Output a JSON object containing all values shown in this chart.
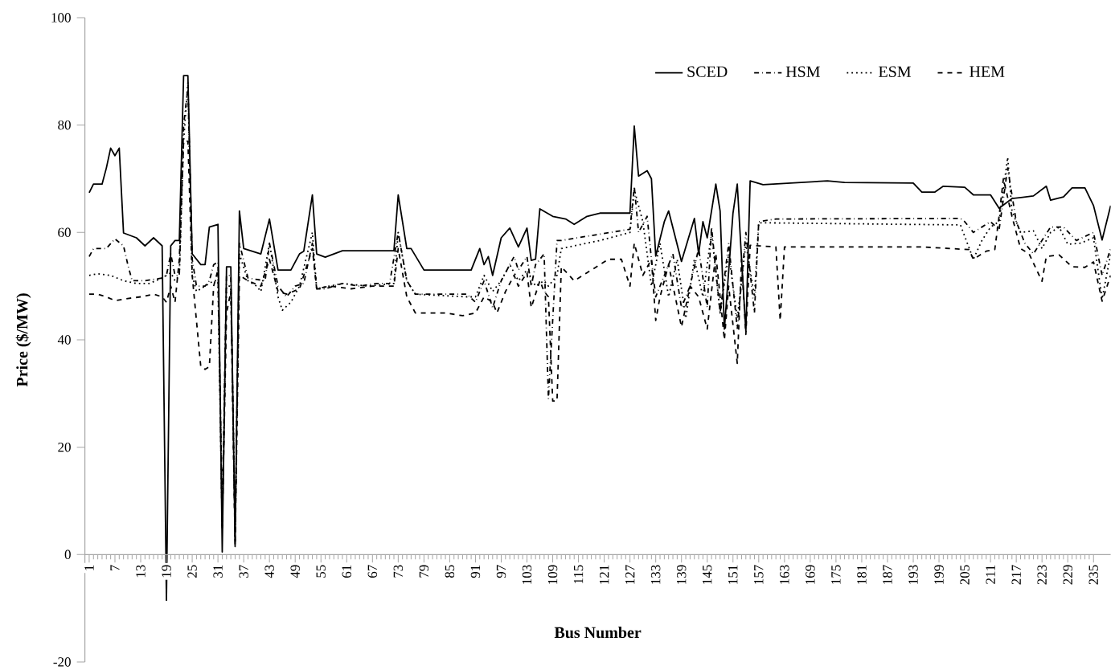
{
  "chart_data": {
    "type": "line",
    "xlabel": "Bus Number",
    "ylabel": "Price ($/MW)",
    "xlim": [
      0,
      239
    ],
    "ylim": [
      -20,
      100
    ],
    "xticks": [
      1,
      7,
      13,
      19,
      25,
      31,
      37,
      43,
      49,
      55,
      61,
      67,
      73,
      79,
      85,
      91,
      97,
      103,
      109,
      115,
      121,
      127,
      133,
      139,
      145,
      151,
      157,
      163,
      169,
      175,
      181,
      187,
      193,
      199,
      205,
      211,
      217,
      223,
      229,
      235
    ],
    "yticks": [
      -20,
      0,
      20,
      40,
      60,
      80,
      100
    ],
    "grid": false,
    "legend": "top right",
    "series": [
      {
        "name": "SCED",
        "color": "#000000",
        "line_style": "solid",
        "x": [
          1,
          2,
          4,
          5,
          6,
          7,
          8,
          9,
          12,
          14,
          16,
          18,
          19,
          20,
          21,
          22,
          23,
          24,
          25,
          27,
          28,
          29,
          31,
          32,
          33,
          34,
          35,
          36,
          37,
          41,
          43,
          45,
          48,
          50,
          51,
          53,
          54,
          56,
          60,
          65,
          70,
          72,
          73,
          75,
          76,
          79,
          85,
          90,
          92,
          93,
          94,
          95,
          97,
          99,
          101,
          103,
          104,
          105,
          106,
          109,
          112,
          114,
          117,
          120,
          127,
          128,
          129,
          131,
          132,
          133,
          135,
          136,
          139,
          142,
          143,
          144,
          145,
          147,
          148,
          149,
          151,
          152,
          153,
          154,
          155,
          158,
          173,
          177,
          193,
          195,
          198,
          200,
          205,
          207,
          211,
          213,
          216,
          221,
          224,
          225,
          228,
          230,
          233,
          235,
          237,
          239
        ],
        "values": [
          67.4,
          69,
          69,
          72,
          75.7,
          74.3,
          75.7,
          59.9,
          59,
          57.5,
          59,
          57.5,
          -8.5,
          57.5,
          58.5,
          58.5,
          89.2,
          89.2,
          56,
          54,
          54,
          61,
          61.5,
          0.5,
          53.6,
          53.6,
          2,
          64,
          57,
          56,
          62.5,
          53,
          53,
          56,
          56.5,
          67,
          56,
          55.4,
          56.6,
          56.6,
          56.6,
          56.6,
          67,
          57,
          57,
          53,
          53,
          53,
          57,
          54,
          55.5,
          52,
          59,
          60.8,
          57.3,
          60.8,
          54.8,
          55,
          64.4,
          63,
          62.5,
          61.5,
          63,
          63.6,
          63.6,
          79.8,
          70.5,
          71.5,
          70,
          55.6,
          62,
          64,
          54.6,
          62.6,
          56,
          62,
          59,
          69,
          64,
          42,
          63.6,
          69,
          55,
          41.6,
          69.6,
          68.9,
          69.6,
          69.3,
          69.2,
          67.5,
          67.5,
          68.6,
          68.4,
          67,
          67,
          64.5,
          66.3,
          66.8,
          68.6,
          66,
          66.6,
          68.3,
          68.3,
          65,
          58.6,
          65
        ]
      },
      {
        "name": "HSM",
        "color": "#000000",
        "line_style": "dashdot",
        "x": [
          1,
          2,
          5,
          7,
          9,
          10,
          11,
          14,
          18,
          19,
          20,
          21,
          22,
          23,
          24,
          25,
          26,
          28,
          29,
          30,
          31,
          32,
          33,
          34,
          35,
          36,
          38,
          42,
          43,
          45,
          47,
          49,
          51,
          53,
          54,
          56,
          60,
          64,
          68,
          71,
          73,
          75,
          77,
          89,
          91,
          93,
          95,
          97,
          100,
          101,
          103,
          104,
          105,
          107,
          108,
          110,
          111,
          127,
          128,
          129,
          131,
          132,
          133,
          135,
          137,
          139,
          141,
          143,
          145,
          146,
          148,
          150,
          152,
          154,
          156,
          157,
          161,
          204,
          205,
          207,
          209,
          211,
          213,
          215,
          217,
          219,
          221,
          223,
          225,
          228,
          231,
          235,
          237,
          239
        ],
        "values": [
          55.5,
          57,
          57,
          58.8,
          57.5,
          54,
          51,
          51,
          51.5,
          52,
          56,
          52,
          52,
          80,
          87,
          55,
          50,
          50,
          51,
          54,
          54.5,
          8,
          52,
          52,
          2.4,
          58,
          51.5,
          51,
          58,
          50,
          48,
          50,
          50.5,
          58,
          49.5,
          49.5,
          50.5,
          50,
          50.5,
          50.5,
          60,
          51,
          48.5,
          48.5,
          47,
          51,
          46,
          51,
          55.5,
          53,
          55.5,
          50,
          54,
          56,
          29,
          58.5,
          58.5,
          60.6,
          68.6,
          60,
          63,
          55,
          48,
          52,
          56,
          46,
          50,
          57,
          46,
          61,
          45,
          58,
          42,
          60,
          45,
          62,
          62.5,
          62.6,
          62,
          60,
          61,
          62,
          60.5,
          72,
          62,
          58,
          56,
          58.5,
          61,
          61,
          58.5,
          60,
          52,
          57
        ]
      },
      {
        "name": "ESM",
        "color": "#000000",
        "line_style": "dotted",
        "x": [
          1,
          3,
          6,
          9,
          12,
          15,
          18,
          19,
          20,
          21,
          22,
          23,
          24,
          25,
          26,
          28,
          30,
          31,
          32,
          33,
          34,
          35,
          36,
          38,
          40,
          41,
          43,
          45,
          46,
          48,
          50,
          53,
          54,
          60,
          66,
          72,
          73,
          75,
          77,
          89,
          91,
          93,
          95,
          97,
          99,
          101,
          103,
          105,
          107,
          108,
          110,
          111,
          120,
          127,
          128,
          130,
          132,
          134,
          136,
          138,
          140,
          142,
          144,
          146,
          148,
          150,
          152,
          154,
          156,
          157,
          204,
          207,
          209,
          211,
          213,
          215,
          216,
          218,
          221,
          223,
          225,
          227,
          229,
          232,
          235,
          237,
          239
        ],
        "values": [
          52,
          52.3,
          52,
          51,
          50.5,
          50.5,
          51.5,
          52,
          52.5,
          51,
          52,
          77,
          88,
          52,
          49,
          50,
          51,
          51,
          5,
          50,
          50,
          5,
          56,
          51,
          50,
          49,
          58,
          48,
          45.5,
          47,
          50,
          60,
          49.5,
          50.5,
          50,
          50.5,
          60,
          51,
          48.5,
          48,
          48,
          52,
          49,
          51,
          54,
          51,
          53,
          50,
          51,
          50,
          52,
          57,
          58.5,
          60,
          68,
          62,
          50,
          58,
          48,
          55,
          44,
          55,
          48,
          60,
          45,
          56,
          44,
          58,
          48,
          61.8,
          61.4,
          55,
          58.5,
          61,
          62,
          74,
          64,
          60,
          60.3,
          57,
          60,
          61,
          57.8,
          58,
          59,
          47.6,
          56
        ]
      },
      {
        "name": "HEM",
        "color": "#000000",
        "line_style": "dashed",
        "x": [
          1,
          3,
          5,
          7,
          10,
          13,
          16,
          18,
          19,
          20,
          21,
          22,
          23,
          24,
          25,
          27,
          28,
          29,
          30,
          31,
          32,
          33,
          34,
          35,
          36,
          38,
          41,
          43,
          45,
          47,
          50,
          53,
          54,
          57,
          62,
          67,
          72,
          73,
          75,
          77,
          84,
          88,
          91,
          93,
          95,
          96,
          98,
          100,
          101,
          103,
          104,
          106,
          107,
          108,
          109,
          110,
          111,
          114,
          117,
          122,
          125,
          127,
          128,
          130,
          132,
          133,
          134,
          136,
          139,
          141,
          143,
          145,
          147,
          149,
          150,
          152,
          153,
          154,
          155,
          161,
          162,
          163,
          195,
          206,
          207,
          210,
          212,
          213,
          214,
          216,
          218,
          220,
          223,
          224,
          227,
          230,
          233,
          235,
          237,
          239
        ],
        "values": [
          48.5,
          48.5,
          48,
          47.3,
          47.7,
          48,
          48.5,
          48,
          47,
          50,
          47,
          55,
          77,
          77,
          52,
          35,
          34.5,
          35,
          50,
          53,
          5,
          45,
          49,
          1.5,
          52,
          51,
          50,
          55,
          49,
          48.5,
          49.5,
          57,
          49.5,
          50,
          49.5,
          50,
          50,
          57,
          48,
          45,
          45,
          44.5,
          45,
          48,
          47,
          45,
          49,
          52,
          50,
          52.5,
          46,
          51,
          49,
          48,
          28.6,
          28.6,
          53.6,
          51,
          52.5,
          55,
          55,
          50,
          58,
          52,
          55,
          43.6,
          48,
          54,
          42.4,
          50,
          48,
          42,
          56,
          40,
          50,
          35.6,
          55,
          41,
          57.6,
          57.3,
          43.6,
          57.3,
          57.3,
          56.8,
          55,
          56.5,
          56.8,
          63,
          70,
          63,
          57,
          56,
          50.9,
          55.5,
          55.8,
          53.6,
          53.5,
          54.5,
          47.2,
          52
        ]
      }
    ]
  }
}
